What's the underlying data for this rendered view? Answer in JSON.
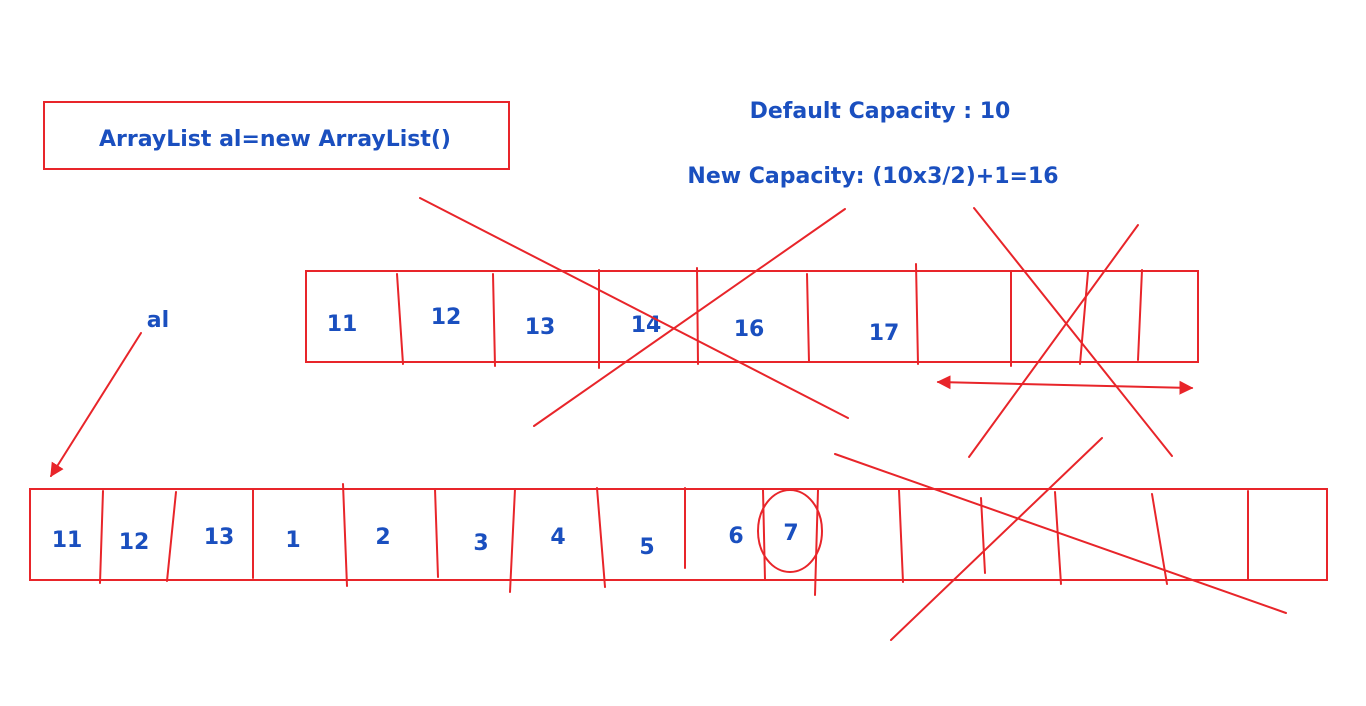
{
  "colors": {
    "ink": "#e8252a",
    "text": "#1a4fbf",
    "background": "#ffffff"
  },
  "code_box": {
    "text": "ArrayList al=new ArrayList()"
  },
  "default_capacity": "Default Capacity : 10",
  "new_capacity": "New Capacity: (10x3/2)+1=16",
  "reference_label": "al",
  "old_array": {
    "values": [
      "11",
      "12",
      "13",
      "14",
      "16",
      "17",
      "",
      "",
      "",
      ""
    ]
  },
  "new_array": {
    "values": [
      "11",
      "12",
      "13",
      "1",
      "2",
      "3",
      "4",
      "5",
      "6",
      "7",
      "",
      "",
      "",
      "",
      "",
      ""
    ],
    "circled_value": "7"
  }
}
